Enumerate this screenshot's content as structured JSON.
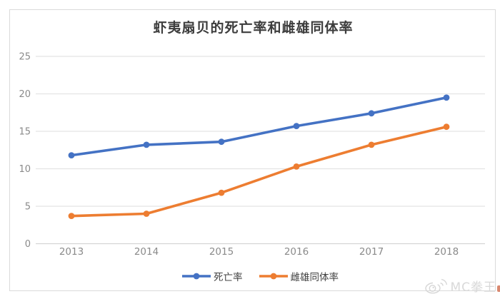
{
  "chart_data": {
    "type": "line",
    "title": "虾夷扇贝的死亡率和雌雄同体率",
    "categories": [
      "2013",
      "2014",
      "2015",
      "2016",
      "2017",
      "2018"
    ],
    "series": [
      {
        "name": "死亡率",
        "color": "#4472C4",
        "values": [
          11.8,
          13.2,
          13.6,
          15.7,
          17.4,
          19.5
        ]
      },
      {
        "name": "雌雄同体率",
        "color": "#ED7D31",
        "values": [
          3.7,
          4.0,
          6.8,
          10.3,
          13.2,
          15.6
        ]
      }
    ],
    "xlabel": "",
    "ylabel": "",
    "ylim": [
      0,
      25
    ],
    "yticks": [
      0,
      5,
      10,
      15,
      20,
      25
    ],
    "grid": true,
    "legend_position": "bottom"
  },
  "watermark": {
    "text": "MC拳王",
    "icon": "weibo-icon"
  }
}
